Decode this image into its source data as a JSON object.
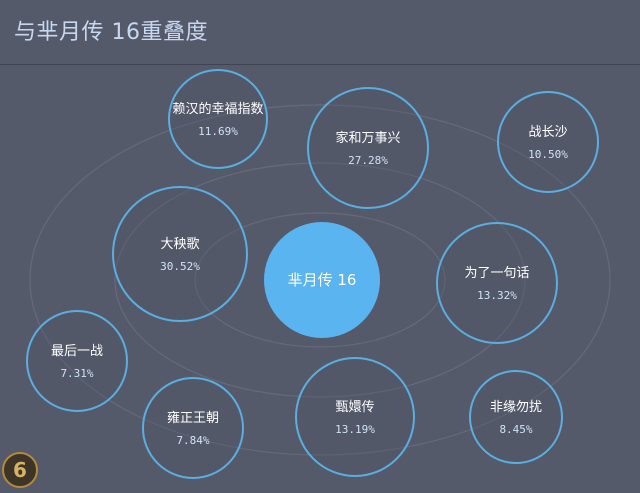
{
  "header": {
    "title": "与芈月传 16重叠度"
  },
  "chart_data": {
    "type": "bubble-overlap",
    "title": "与芈月传 16重叠度",
    "center": {
      "label": "芈月传 16"
    },
    "items": [
      {
        "name": "赖汉的幸福指数",
        "value": 11.69,
        "label": "11.69%"
      },
      {
        "name": "家和万事兴",
        "value": 27.28,
        "label": "27.28%"
      },
      {
        "name": "战长沙",
        "value": 10.5,
        "label": "10.50%"
      },
      {
        "name": "大秧歌",
        "value": 30.52,
        "label": "30.52%"
      },
      {
        "name": "为了一句话",
        "value": 13.32,
        "label": "13.32%"
      },
      {
        "name": "最后一战",
        "value": 7.31,
        "label": "7.31%"
      },
      {
        "name": "雍正王朝",
        "value": 7.84,
        "label": "7.84%"
      },
      {
        "name": "甄嬛传",
        "value": 13.19,
        "label": "13.19%"
      },
      {
        "name": "非缘勿扰",
        "value": 8.45,
        "label": "8.45%"
      }
    ],
    "colors": {
      "background": "#555a6b",
      "center_fill": "#5ab4f0",
      "bubble_stroke": "#5aaee0",
      "bubble_fill": "#4f5566",
      "name_text": "#ffffff",
      "value_text": "#cfe3f5",
      "orbit": "#6a7082"
    }
  },
  "logo": {
    "glyph": "6"
  }
}
